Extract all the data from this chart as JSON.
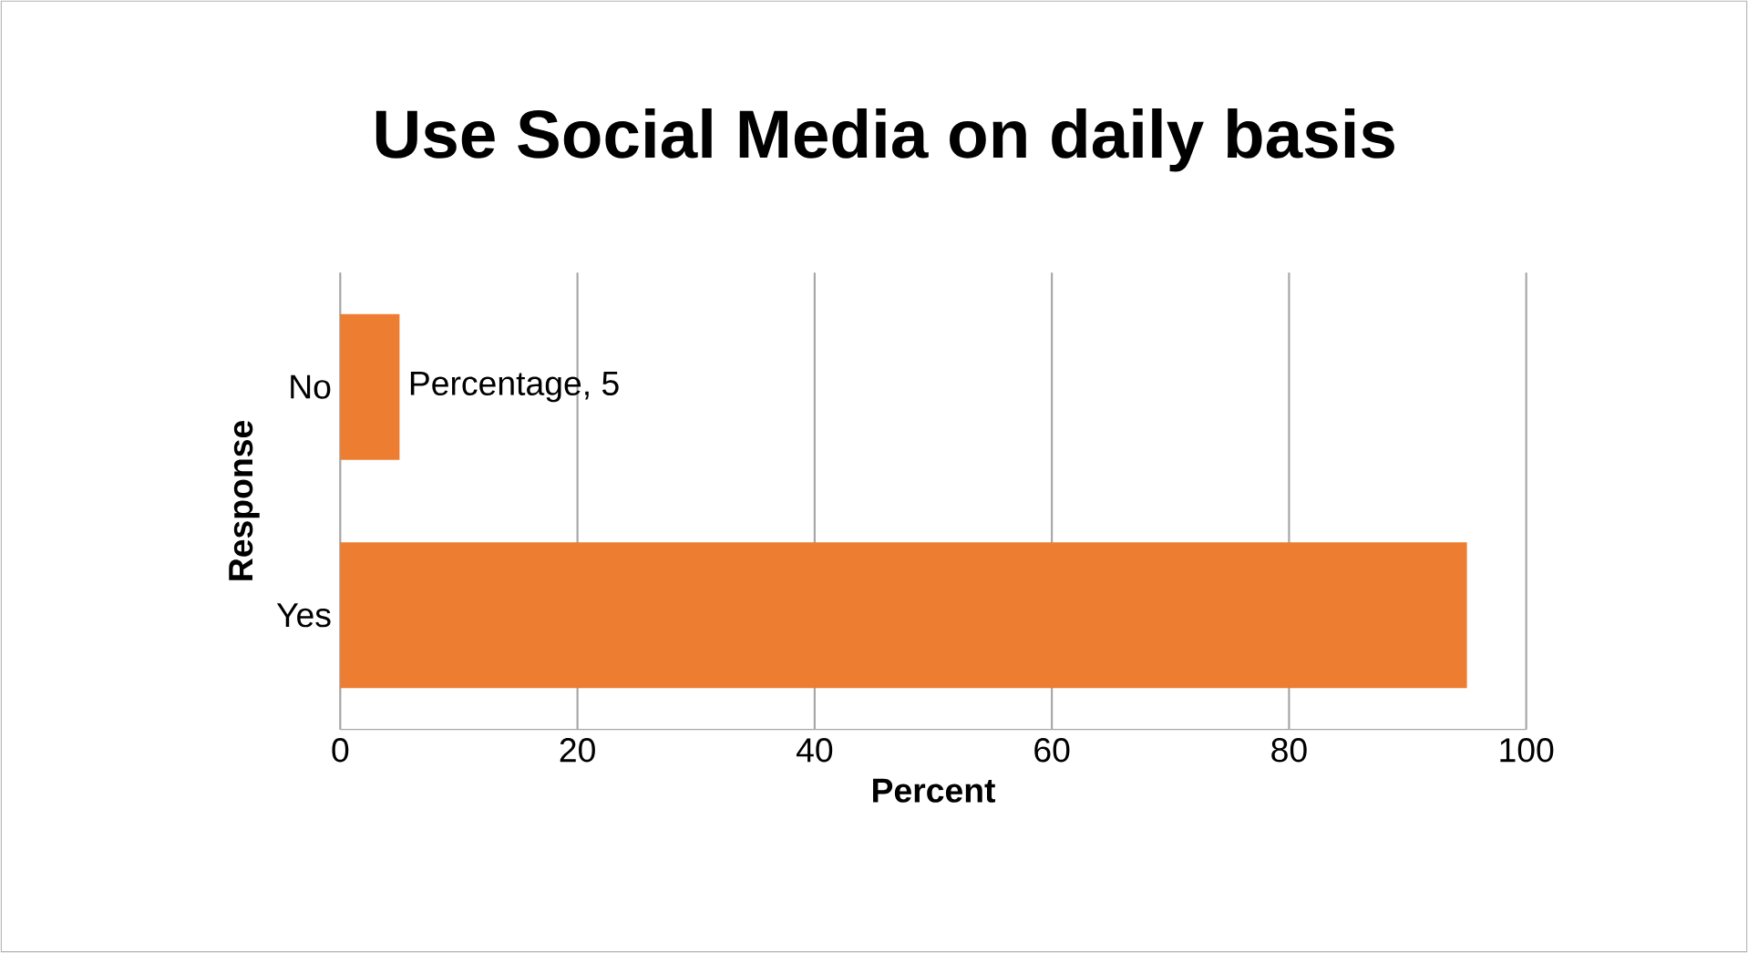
{
  "chart_data": {
    "type": "bar",
    "orientation": "horizontal",
    "title": "Use Social Media on daily basis",
    "xlabel": "Percent",
    "ylabel": "Response",
    "categories": [
      "No",
      "Yes"
    ],
    "series": [
      {
        "color": "#ed7d31",
        "values": [
          5,
          95
        ],
        "value_labels": [
          "Percentage, 5",
          null
        ]
      }
    ],
    "xlim": [
      0,
      100
    ],
    "xticks": [
      0,
      20,
      40,
      60,
      80,
      100
    ],
    "grid": "x"
  }
}
